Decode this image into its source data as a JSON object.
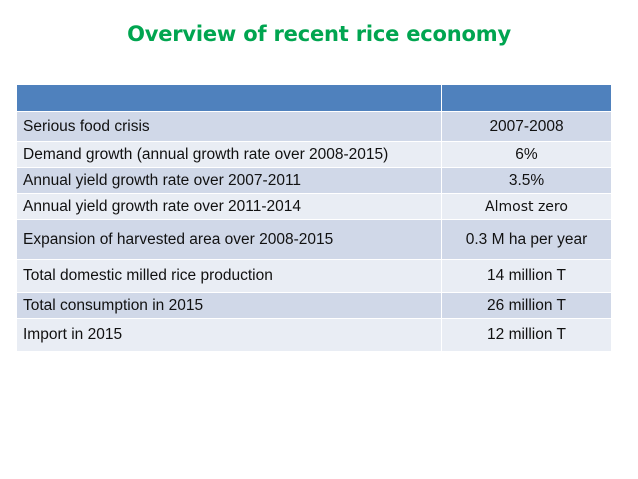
{
  "title": "Overview of recent rice economy",
  "colors": {
    "title": "#00a550",
    "header": "#4f81bd",
    "row_dark": "#d0d8e8",
    "row_light": "#e9edf4"
  },
  "table": {
    "header": [
      "",
      ""
    ],
    "rows": [
      {
        "label": "Serious food crisis",
        "value": "2007-2008"
      },
      {
        "label": "Demand growth (annual growth rate over 2008-2015)",
        "value": "6%"
      },
      {
        "label": "Annual yield growth rate over 2007-2011",
        "value": "3.5%"
      },
      {
        "label": "Annual yield growth rate over 2011-2014",
        "value": "Almost zero"
      },
      {
        "label": "Expansion of harvested area over 2008-2015",
        "value": "0.3 M ha per year"
      },
      {
        "label": "Total domestic milled rice production",
        "value": "14 million T"
      },
      {
        "label": "Total consumption in 2015",
        "value": "26 million T"
      },
      {
        "label": "Import in 2015",
        "value": "12 million T"
      }
    ]
  }
}
